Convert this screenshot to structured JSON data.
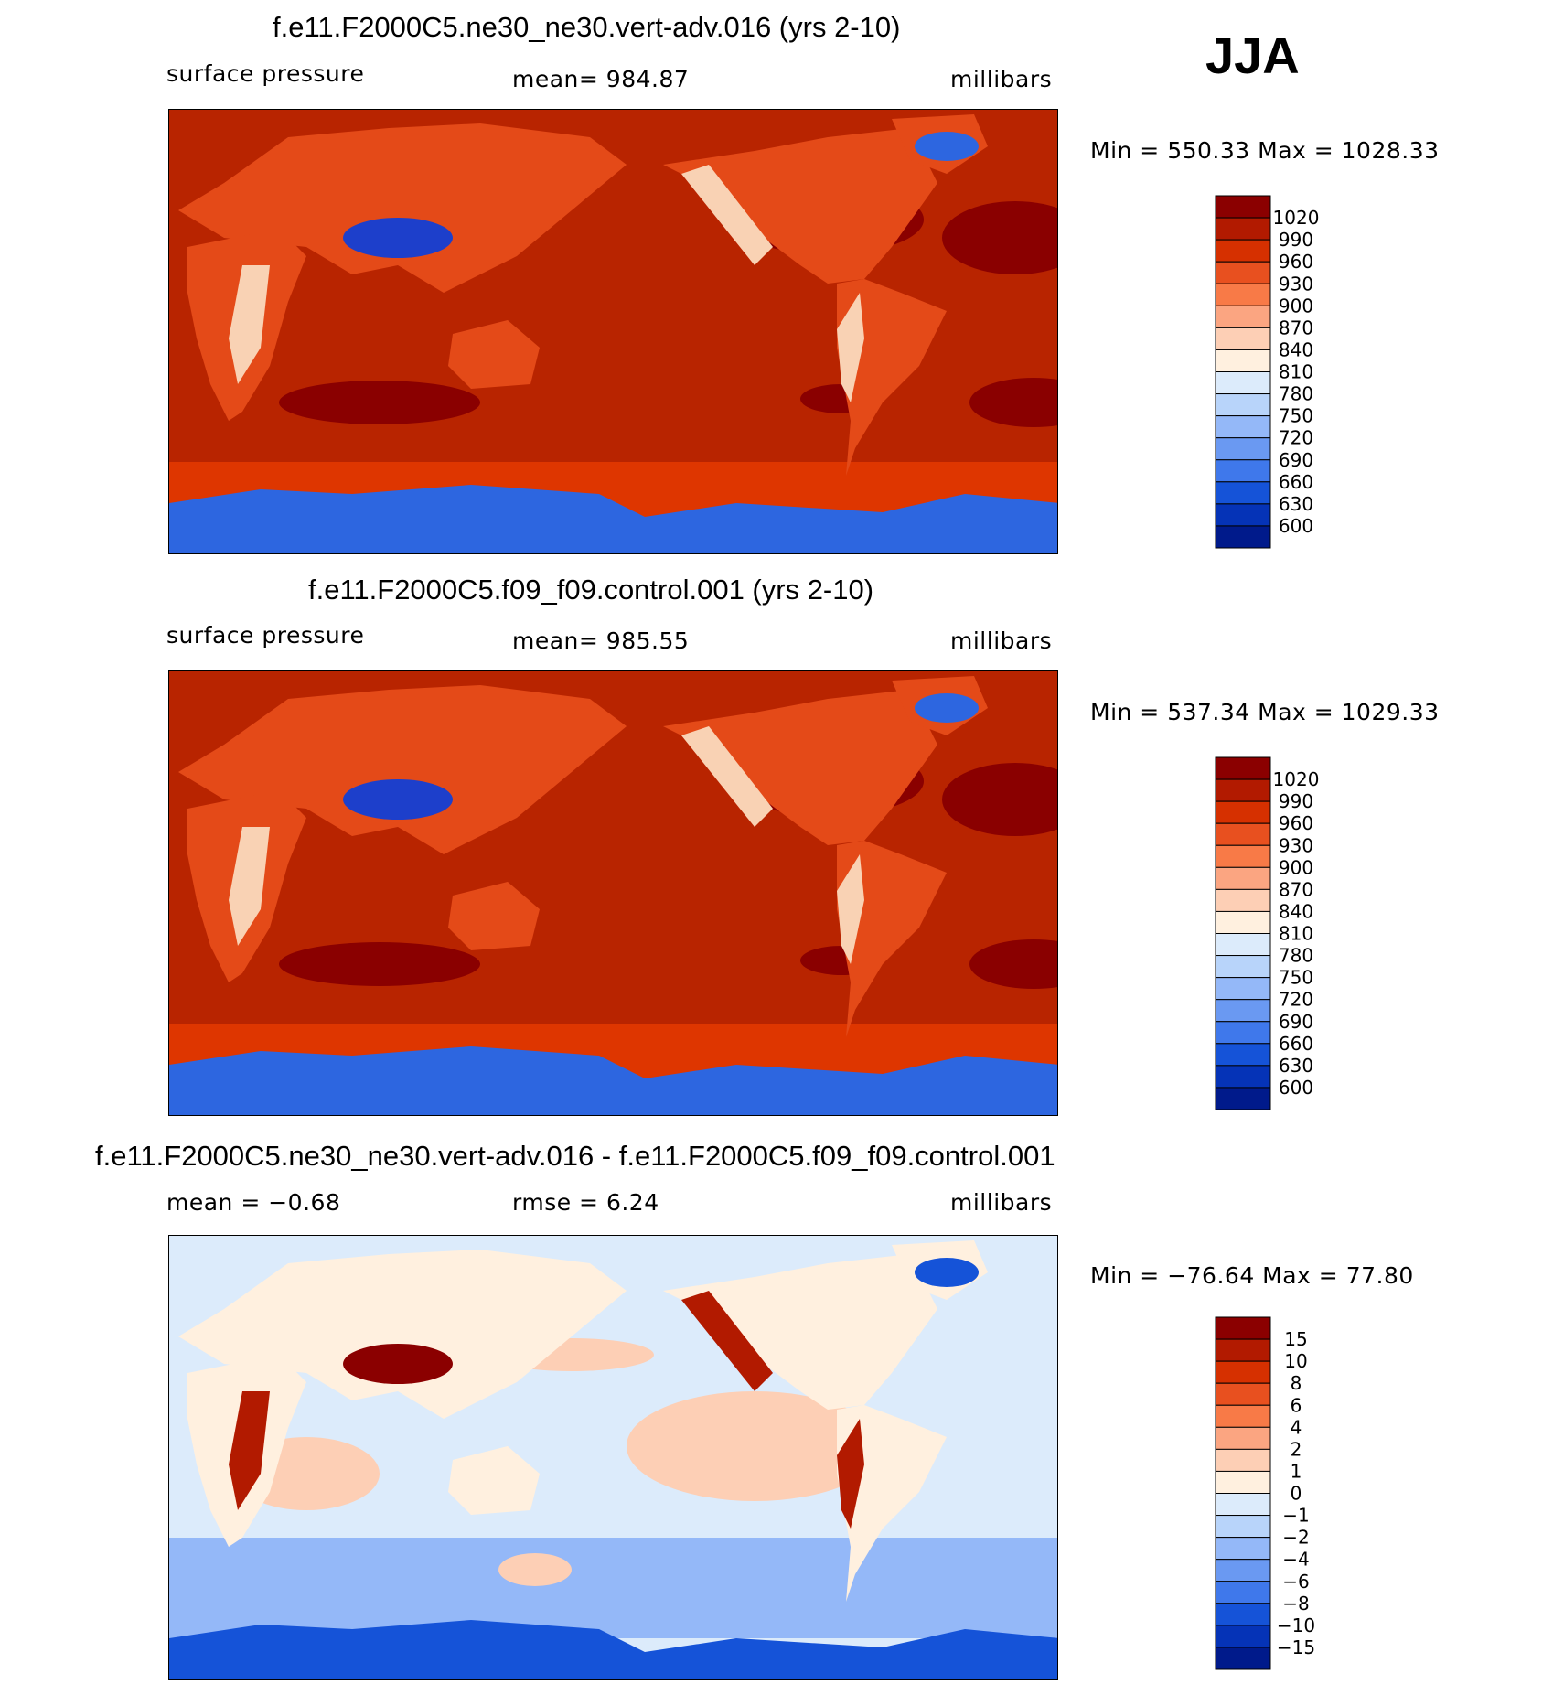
{
  "season": "JJA",
  "panels": [
    {
      "title": "f.e11.F2000C5.ne30_ne30.vert-adv.016 (yrs 2-10)",
      "left_label": "surface pressure",
      "center_label": "mean=  984.87",
      "right_label": "millibars",
      "minmax": "Min = 550.33 Max = 1028.33",
      "colorbar": {
        "levels": [
          "1020",
          "990",
          "960",
          "930",
          "900",
          "870",
          "840",
          "810",
          "780",
          "750",
          "720",
          "690",
          "660",
          "630",
          "600"
        ],
        "colors": [
          "#8b0000",
          "#b21a00",
          "#d63000",
          "#e8501f",
          "#f87a47",
          "#fba581",
          "#fdcfb5",
          "#fff0df",
          "#dcebfb",
          "#b8d4fa",
          "#94b8f8",
          "#6a99f2",
          "#3f78eb",
          "#1553d8",
          "#0533b7",
          "#001a8b"
        ]
      },
      "map_colors": {
        "ocean": "#b82400",
        "land": "#e44a18",
        "subtropical_high": "#8a0000",
        "southern_band": "#de3600",
        "high_terrain": "#f9d2b4",
        "plateau": "#1d3fcb",
        "ice": "#2d66e0"
      }
    },
    {
      "title": "f.e11.F2000C5.f09_f09.control.001 (yrs 2-10)",
      "left_label": "surface pressure",
      "center_label": "mean=  985.55",
      "right_label": "millibars",
      "minmax": "Min = 537.34 Max = 1029.33",
      "colorbar": {
        "levels": [
          "1020",
          "990",
          "960",
          "930",
          "900",
          "870",
          "840",
          "810",
          "780",
          "750",
          "720",
          "690",
          "660",
          "630",
          "600"
        ],
        "colors": [
          "#8b0000",
          "#b21a00",
          "#d63000",
          "#e8501f",
          "#f87a47",
          "#fba581",
          "#fdcfb5",
          "#fff0df",
          "#dcebfb",
          "#b8d4fa",
          "#94b8f8",
          "#6a99f2",
          "#3f78eb",
          "#1553d8",
          "#0533b7",
          "#001a8b"
        ]
      },
      "map_colors": {
        "ocean": "#b82400",
        "land": "#e44a18",
        "subtropical_high": "#8a0000",
        "southern_band": "#de3600",
        "high_terrain": "#f9d2b4",
        "plateau": "#1d3fcb",
        "ice": "#2d66e0"
      }
    },
    {
      "title": "f.e11.F2000C5.ne30_ne30.vert-adv.016 - f.e11.F2000C5.f09_f09.control.001",
      "left_label": "mean =   −0.68",
      "center_label": "rmse =     6.24",
      "right_label": "millibars",
      "minmax": "Min = −76.64 Max =   77.80",
      "colorbar": {
        "levels": [
          "15",
          "10",
          "8",
          "6",
          "4",
          "2",
          "1",
          "0",
          "−1",
          "−2",
          "−4",
          "−6",
          "−8",
          "−10",
          "−15"
        ],
        "colors": [
          "#8b0000",
          "#b21a00",
          "#d63000",
          "#e8501f",
          "#f87a47",
          "#fba581",
          "#fdcfb5",
          "#fff0df",
          "#dcebfb",
          "#b8d4fa",
          "#94b8f8",
          "#6a99f2",
          "#3f78eb",
          "#1553d8",
          "#0533b7",
          "#001a8b"
        ]
      },
      "map_colors": {
        "ocean": "#dcebfb",
        "land": "#fff0df",
        "subtropical_high": "#fdcfb5",
        "southern_band": "#94b8f8",
        "high_terrain": "#b21a00",
        "plateau": "#8b0000",
        "ice": "#1553d8"
      }
    }
  ]
}
